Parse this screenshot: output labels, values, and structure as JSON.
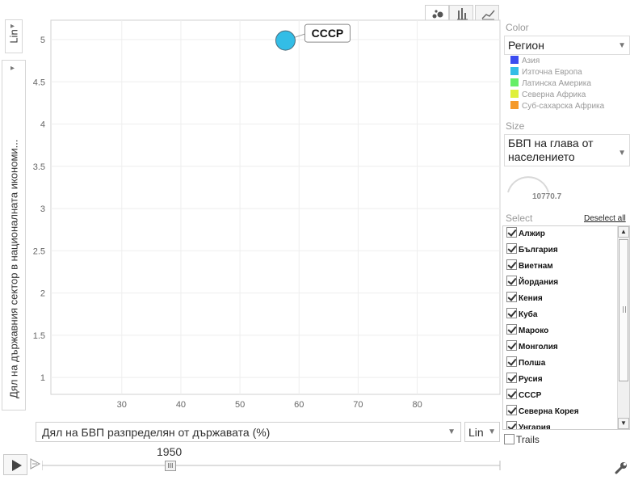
{
  "y_axis": {
    "scale_label": "Lin",
    "title": "Дял на държавния сектор в националната икономи..."
  },
  "x_axis": {
    "title": "Дял на БВП разпределян от държавата (%)",
    "scale_label": "Lin"
  },
  "chart_data": {
    "type": "scatter",
    "title": "",
    "xlabel": "Дял на БВП разпределян от държавата (%)",
    "ylabel": "Дял на държавния сектор в националната икономи...",
    "xlim": [
      18,
      94
    ],
    "ylim": [
      0.8,
      5.23
    ],
    "x_ticks": [
      "30",
      "40",
      "50",
      "60",
      "70",
      "80"
    ],
    "y_ticks": [
      "1",
      "1.5",
      "2",
      "2.5",
      "3",
      "3.5",
      "4",
      "4.5",
      "5"
    ],
    "grid": true,
    "points": [
      {
        "name": "СССР",
        "x": 57.7,
        "y": 4.99,
        "region": "Източна Европа",
        "color": "#33bde6"
      }
    ]
  },
  "color_panel": {
    "label": "Color",
    "selected": "Регион",
    "legend": [
      {
        "name": "Азия",
        "color": "#3b4cf0"
      },
      {
        "name": "Източна Европа",
        "color": "#33bde6"
      },
      {
        "name": "Латинска Америка",
        "color": "#66ee66"
      },
      {
        "name": "Северна Африка",
        "color": "#dff03a"
      },
      {
        "name": "Суб-сахарска Африка",
        "color": "#f59a2a"
      }
    ]
  },
  "size_panel": {
    "label": "Size",
    "selected_line1": "БВП на глава от",
    "selected_line2": "населението",
    "value": "10770.7"
  },
  "select_panel": {
    "label": "Select",
    "deselect_all": "Deselect all",
    "items": [
      "Алжир",
      "България",
      "Виетнам",
      "Йордания",
      "Кения",
      "Куба",
      "Мароко",
      "Монголия",
      "Полша",
      "Русия",
      "СССР",
      "Северна Корея",
      "Унгария"
    ]
  },
  "trails": {
    "label": "Trails",
    "checked": false
  },
  "timeline": {
    "year": "1950"
  }
}
